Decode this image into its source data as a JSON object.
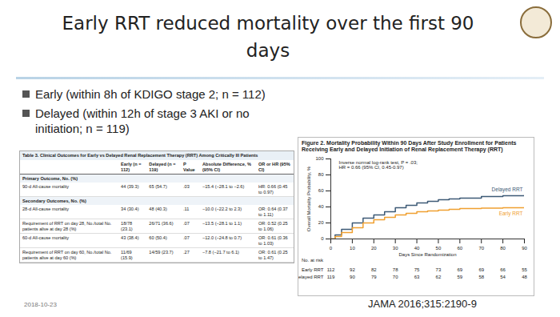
{
  "slide": {
    "title": "Early RRT reduced mortality over the first 90 days",
    "bullets": [
      "Early (within 8h of KDIGO stage 2; n = 112)",
      "Delayed (within 12h of stage 3 AKI or no initiation; n = 119)"
    ],
    "date": "2018-10-23",
    "citation": "JAMA 2016;315:2190-9"
  },
  "table": {
    "title": "Table 3. Clinical Outcomes for Early vs Delayed Renal Replacement Therapy (RRT) Among Critically Ill Patients",
    "columns": [
      "",
      "Early (n = 112)",
      "Delayed (n = 119)",
      "P Value",
      "Absolute Difference, % (95% CI)",
      "OR or HR (95% CI)"
    ],
    "rows": [
      [
        "Primary Outcome, No. (%)"
      ],
      [
        "90-d All-cause mortality",
        "44 (39.3)",
        "65 (54.7)",
        ".03",
        "−15.4 (−28.1 to −2.6)",
        "HR: 0.66 (0.45 to 0.97)"
      ],
      [
        "Secondary Outcomes, No. (%)"
      ],
      [
        "28-d All-cause mortality",
        "34 (30.4)",
        "48 (40.3)",
        ".11",
        "−10.0 (−22.2 to 2.3)",
        "OR: 0.64 (0.37 to 1.11)"
      ],
      [
        "Requirement of RRT on day 28, No./total No. patients alive at day 28 (%)",
        "18/78 (23.1)",
        "26/71 (36.6)",
        ".07",
        "−13.5 (−28.1 to 1.1)",
        "OR: 0.52 (0.25 to 1.06)"
      ],
      [
        "60-d All-cause mortality",
        "43 (38.4)",
        "60 (50.4)",
        ".07",
        "−12.0 (−24.8 to 0.7)",
        "OR: 0.61 (0.36 to 1.03)"
      ],
      [
        "Requirement of RRT on day 60, No./total No. patients alive at day 60 (%)",
        "11/69 (15.9)",
        "14/59 (23.7)",
        ".27",
        "−7.8 (−21.7 to 6.1)",
        "OR: 0.61 (0.25 to 1.47)"
      ]
    ]
  },
  "chart_data": {
    "type": "line",
    "title": "Figure 2. Mortality Probability Within 90 Days After Study Enrollment for Patients Receiving Early and Delayed Initiation of Renal Replacement Therapy (RRT)",
    "x_label": "Days Since Randomization",
    "y_label": "Overall Mortality Probability, %",
    "xlim": [
      0,
      90
    ],
    "xticks": [
      0,
      10,
      20,
      30,
      40,
      50,
      60,
      70,
      80,
      90
    ],
    "ylim": [
      0,
      100
    ],
    "yticks": [
      0,
      20,
      40,
      60,
      80,
      100
    ],
    "line_style": "step",
    "annotations": [
      "Inverse normal log-rank test, P = .03;",
      "HR = 0.66 (95% CI, 0.45-0.97)"
    ],
    "x": [
      0,
      2,
      5,
      10,
      15,
      20,
      25,
      30,
      35,
      40,
      45,
      50,
      55,
      60,
      70,
      80,
      90
    ],
    "series": [
      {
        "name": "Delayed RRT",
        "color": "#3d5a76",
        "values": [
          0,
          5,
          12,
          20,
          26,
          30,
          34,
          39,
          42,
          45,
          47,
          49,
          50,
          51,
          53,
          54,
          54.7
        ]
      },
      {
        "name": "Early RRT",
        "color": "#f0a030",
        "values": [
          0,
          3,
          8,
          14,
          20,
          24,
          27,
          30,
          32,
          34,
          35,
          36,
          37,
          38,
          38.5,
          39,
          39.3
        ]
      }
    ],
    "at_risk": {
      "label": "No. at risk",
      "x": [
        0,
        10,
        20,
        30,
        40,
        50,
        60,
        70,
        80,
        90
      ],
      "series": [
        {
          "name": "Early RRT",
          "values": [
            112,
            92,
            82,
            78,
            75,
            73,
            69,
            69,
            66,
            55
          ]
        },
        {
          "name": "Delayed RRT",
          "values": [
            119,
            90,
            79,
            70,
            63,
            62,
            59,
            58,
            54,
            48
          ]
        }
      ]
    }
  }
}
